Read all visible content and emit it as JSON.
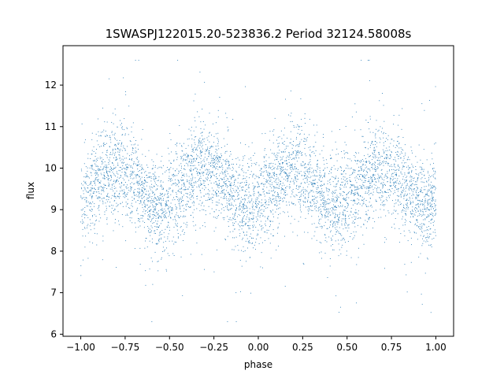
{
  "chart_data": {
    "type": "scatter",
    "title": "1SWASPJ122015.20-523836.2 Period 32124.58008s",
    "xlabel": "phase",
    "ylabel": "flux",
    "xlim": [
      -1.1,
      1.1
    ],
    "ylim": [
      5.95,
      12.95
    ],
    "x_ticks": [
      -1.0,
      -0.75,
      -0.5,
      -0.25,
      0.0,
      0.25,
      0.5,
      0.75,
      1.0
    ],
    "x_tick_labels": [
      "−1.00",
      "−0.75",
      "−0.50",
      "−0.25",
      "0.00",
      "0.25",
      "0.50",
      "0.75",
      "1.00"
    ],
    "y_ticks": [
      6,
      7,
      8,
      9,
      10,
      11,
      12
    ],
    "y_tick_labels": [
      "6",
      "7",
      "8",
      "9",
      "10",
      "11",
      "12"
    ],
    "grid": false,
    "marker_color": "#1f77b4",
    "series": [
      {
        "x_range": [
          -1.0,
          1.0
        ],
        "mean_flux": 9.55,
        "amplitude": 0.45,
        "cycles_per_phase_unit": 2,
        "peak_phases": [
          -0.8,
          -0.3,
          0.2,
          0.7
        ],
        "trough_phases": [
          -0.55,
          -0.05,
          0.45,
          0.95
        ],
        "typical_scatter": 0.55,
        "outlier_flux_range": [
          6.3,
          12.6
        ]
      }
    ]
  }
}
